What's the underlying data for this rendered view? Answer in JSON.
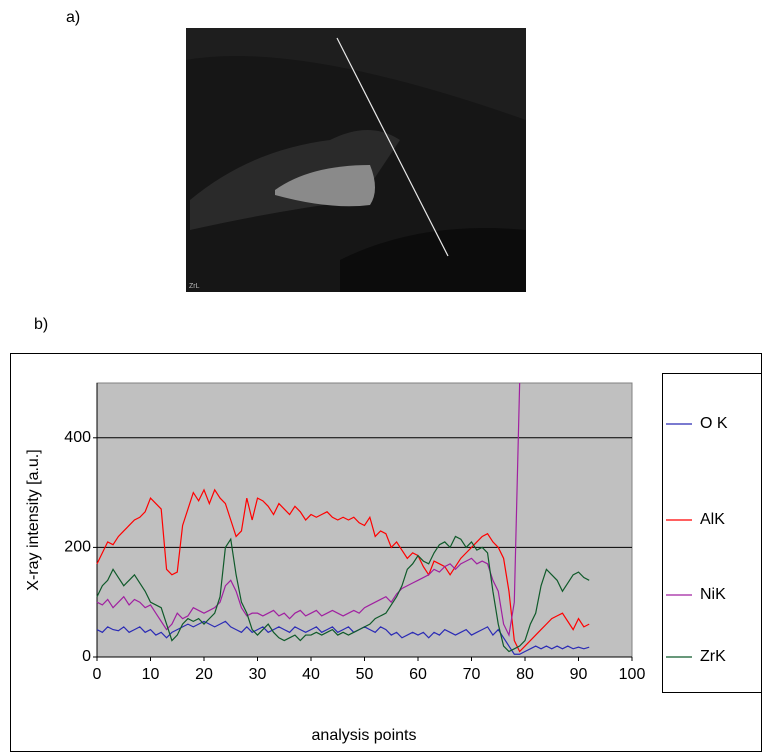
{
  "panel_a": {
    "label": "a)",
    "image_caption": "ZrL"
  },
  "panel_b": {
    "label": "b)"
  },
  "chart_data": {
    "type": "line",
    "y_label": "X-ray intensity [a.u.]",
    "x_label": "analysis points",
    "xlim": [
      0,
      100
    ],
    "xticks": [
      0,
      10,
      20,
      30,
      40,
      50,
      60,
      70,
      80,
      90,
      100
    ],
    "ylim": [
      0,
      500
    ],
    "yticks": [
      0,
      200,
      400
    ],
    "grid": true,
    "legend": "right",
    "x": [
      0,
      1,
      2,
      3,
      4,
      5,
      6,
      7,
      8,
      9,
      10,
      11,
      12,
      13,
      14,
      15,
      16,
      17,
      18,
      19,
      20,
      21,
      22,
      23,
      24,
      25,
      26,
      27,
      28,
      29,
      30,
      31,
      32,
      33,
      34,
      35,
      36,
      37,
      38,
      39,
      40,
      41,
      42,
      43,
      44,
      45,
      46,
      47,
      48,
      49,
      50,
      51,
      52,
      53,
      54,
      55,
      56,
      57,
      58,
      59,
      60,
      61,
      62,
      63,
      64,
      65,
      66,
      67,
      68,
      69,
      70,
      71,
      72,
      73,
      74,
      75,
      76,
      77,
      78,
      79,
      80,
      81,
      82,
      83,
      84,
      85,
      86,
      87,
      88,
      89,
      90,
      91,
      92
    ],
    "series": [
      {
        "name": "O K",
        "color": "#2b2bb5",
        "values": [
          50,
          45,
          55,
          50,
          48,
          55,
          45,
          50,
          55,
          45,
          50,
          40,
          45,
          35,
          45,
          50,
          55,
          60,
          55,
          60,
          65,
          60,
          55,
          60,
          65,
          55,
          50,
          45,
          55,
          45,
          50,
          55,
          45,
          50,
          55,
          50,
          45,
          55,
          50,
          45,
          50,
          55,
          45,
          50,
          55,
          45,
          50,
          55,
          45,
          50,
          55,
          50,
          45,
          55,
          50,
          40,
          45,
          35,
          40,
          45,
          40,
          45,
          35,
          45,
          40,
          50,
          45,
          40,
          45,
          50,
          40,
          45,
          50,
          55,
          40,
          50,
          35,
          20,
          5,
          5,
          10,
          15,
          20,
          15,
          20,
          15,
          20,
          15,
          20,
          15,
          18,
          15,
          18
        ]
      },
      {
        "name": "AlK",
        "color": "#ff0000",
        "values": [
          170,
          190,
          210,
          205,
          220,
          230,
          240,
          250,
          255,
          265,
          290,
          280,
          270,
          160,
          150,
          155,
          240,
          270,
          300,
          285,
          305,
          280,
          305,
          290,
          280,
          250,
          220,
          230,
          290,
          250,
          290,
          285,
          275,
          260,
          280,
          270,
          260,
          275,
          265,
          250,
          260,
          255,
          260,
          265,
          255,
          250,
          255,
          250,
          255,
          245,
          240,
          255,
          220,
          230,
          225,
          200,
          210,
          195,
          180,
          190,
          185,
          165,
          150,
          175,
          170,
          165,
          150,
          165,
          180,
          190,
          200,
          210,
          220,
          225,
          210,
          200,
          180,
          120,
          30,
          10,
          20,
          30,
          40,
          50,
          60,
          70,
          75,
          80,
          65,
          50,
          70,
          55,
          60
        ]
      },
      {
        "name": "NiK",
        "color": "#a020a0",
        "values": [
          100,
          95,
          105,
          90,
          100,
          110,
          95,
          105,
          100,
          90,
          95,
          80,
          65,
          50,
          60,
          80,
          70,
          75,
          90,
          85,
          80,
          85,
          90,
          100,
          130,
          140,
          120,
          90,
          75,
          80,
          80,
          75,
          80,
          85,
          75,
          80,
          70,
          80,
          85,
          75,
          80,
          85,
          75,
          80,
          85,
          80,
          75,
          80,
          85,
          80,
          90,
          95,
          100,
          105,
          110,
          100,
          115,
          125,
          130,
          135,
          140,
          145,
          150,
          160,
          155,
          165,
          170,
          160,
          170,
          175,
          180,
          170,
          175,
          170,
          140,
          120,
          60,
          40,
          100,
          500,
          null,
          null,
          null,
          null,
          null,
          null,
          null,
          null,
          null,
          null,
          null,
          null,
          null
        ]
      },
      {
        "name": "ZrK",
        "color": "#0f5a2a",
        "values": [
          110,
          130,
          140,
          160,
          145,
          130,
          140,
          150,
          135,
          120,
          100,
          95,
          90,
          60,
          30,
          40,
          60,
          70,
          65,
          70,
          60,
          70,
          80,
          110,
          200,
          215,
          150,
          100,
          80,
          50,
          40,
          50,
          60,
          45,
          35,
          30,
          35,
          40,
          30,
          40,
          40,
          45,
          40,
          45,
          50,
          40,
          45,
          40,
          45,
          50,
          55,
          60,
          70,
          75,
          80,
          95,
          110,
          130,
          160,
          170,
          185,
          175,
          170,
          190,
          205,
          210,
          200,
          220,
          215,
          200,
          210,
          195,
          200,
          190,
          120,
          60,
          20,
          10,
          15,
          20,
          30,
          60,
          80,
          130,
          160,
          150,
          140,
          120,
          135,
          150,
          155,
          145,
          140
        ]
      }
    ]
  }
}
